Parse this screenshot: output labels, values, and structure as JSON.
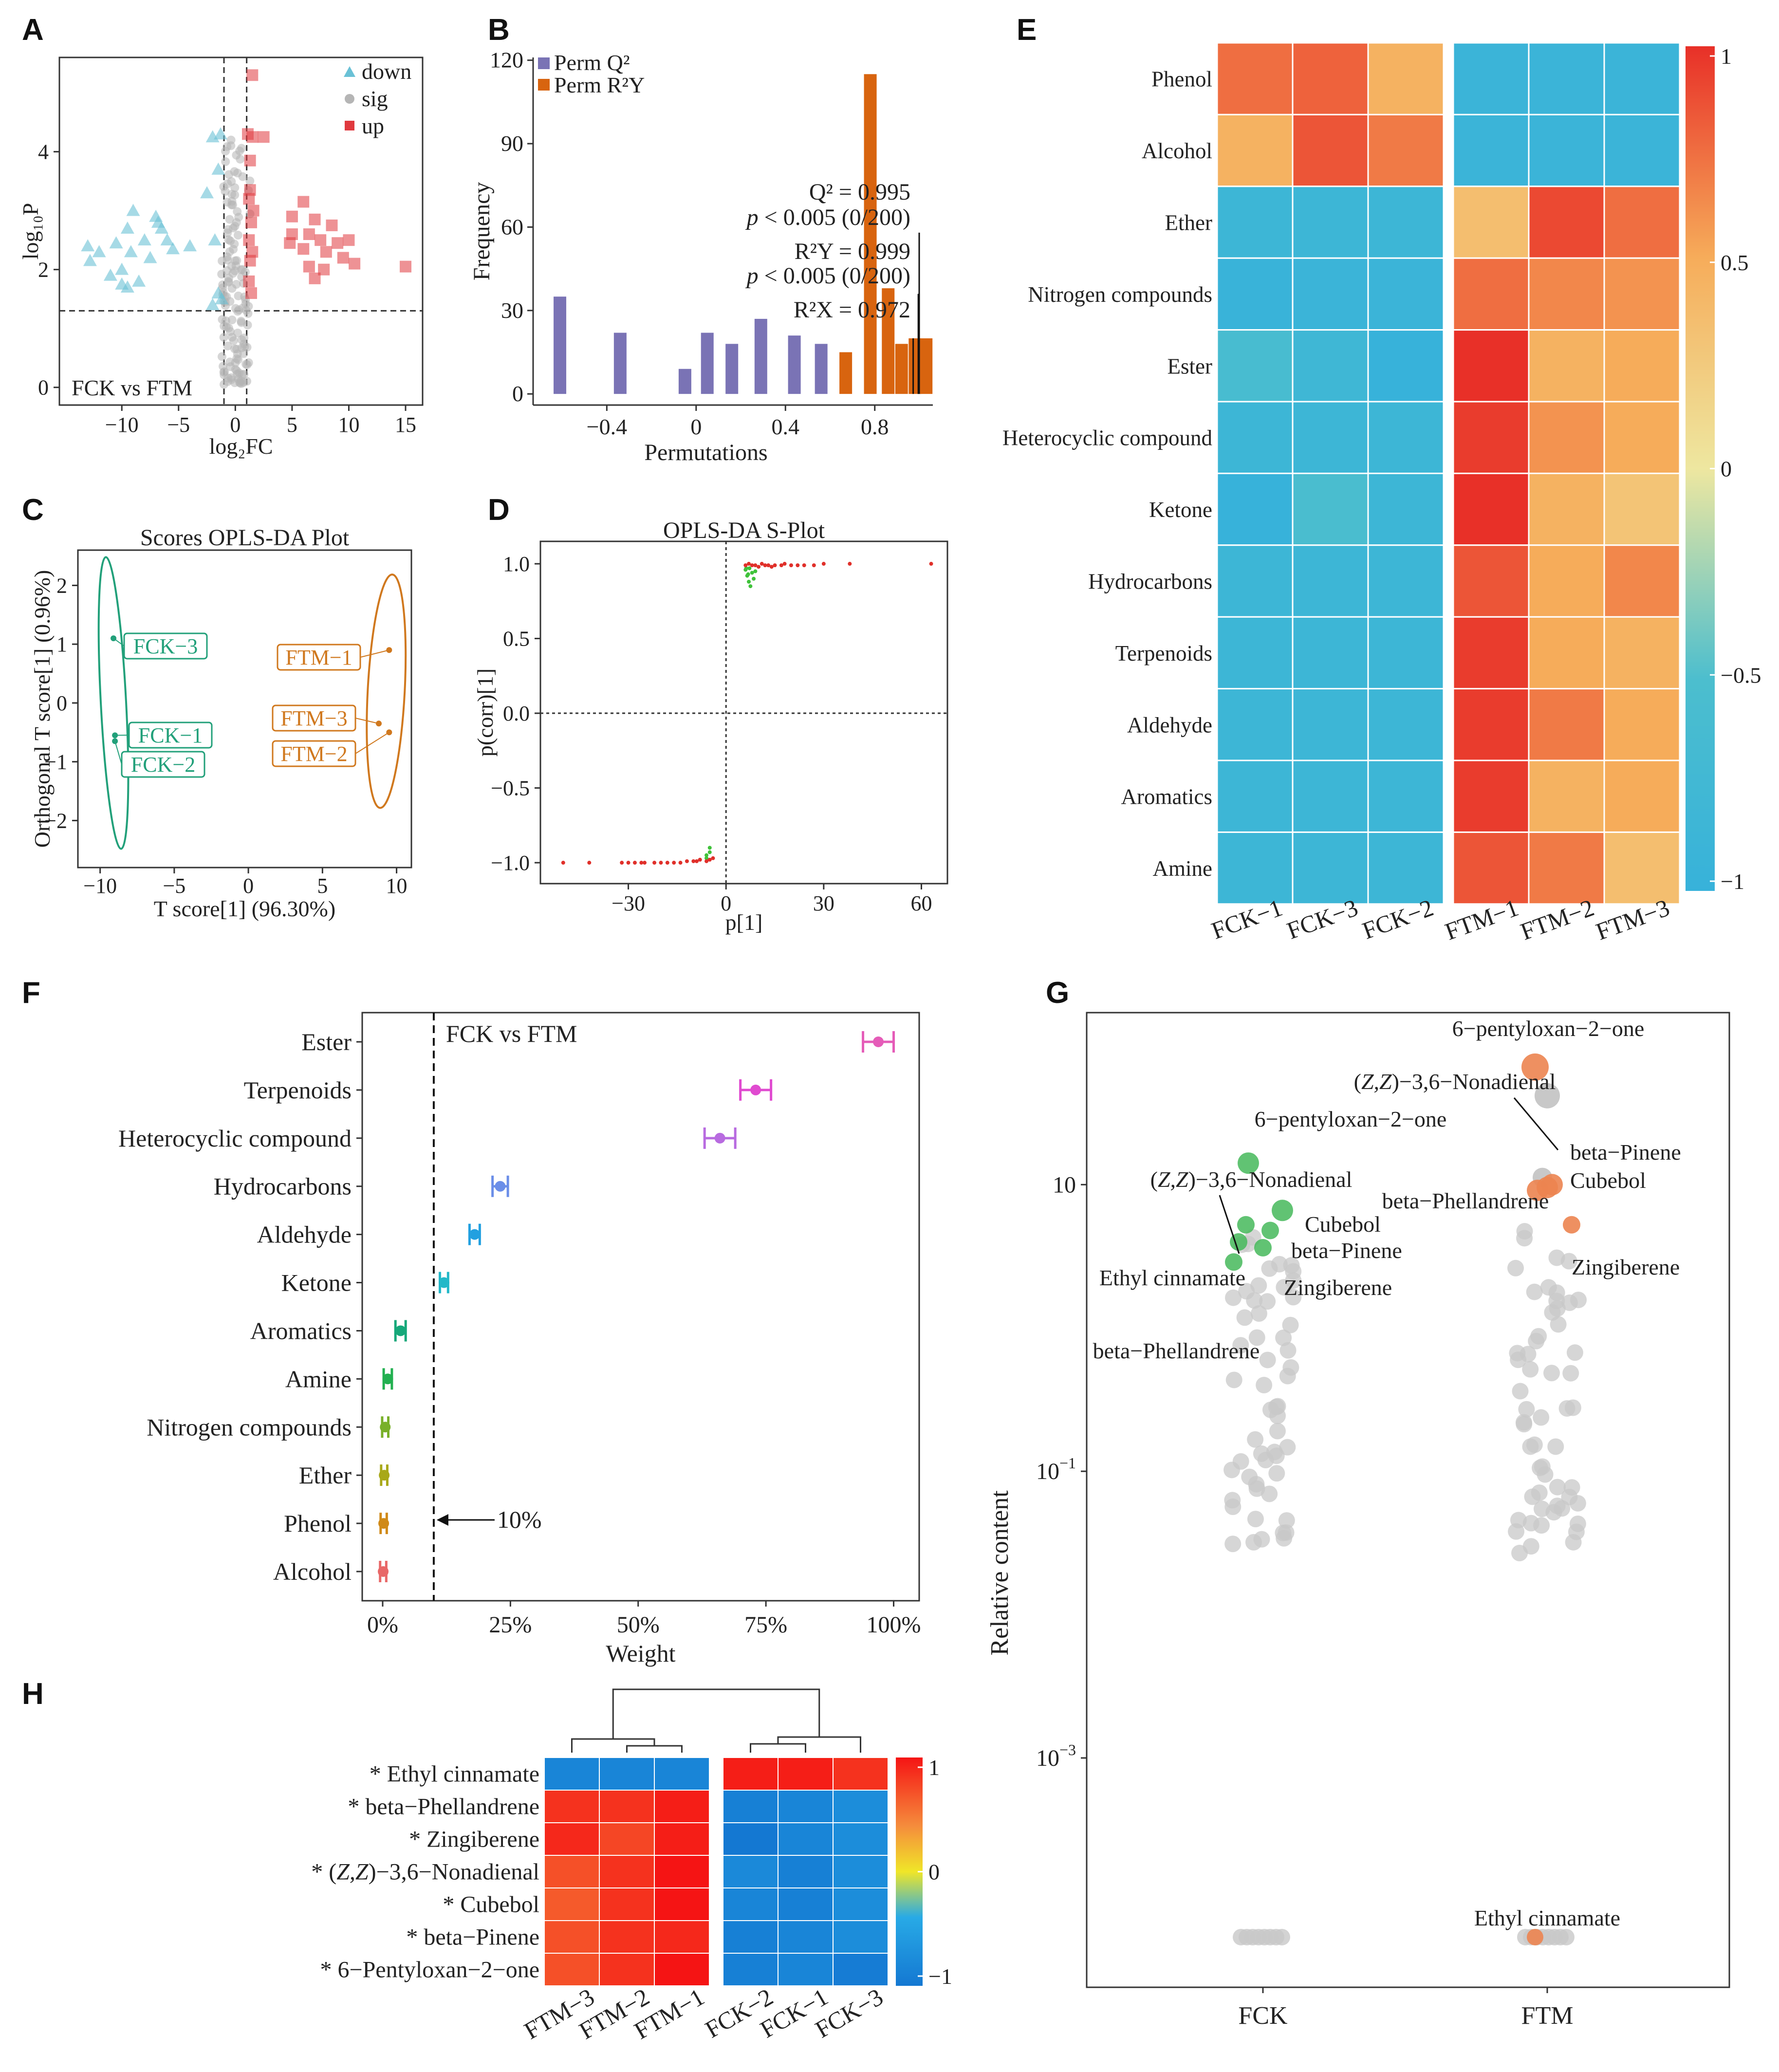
{
  "panels": {
    "a": "A",
    "b": "B",
    "c": "C",
    "d": "D",
    "e": "E",
    "f": "F",
    "g": "G",
    "h": "H"
  },
  "chart_data": [
    {
      "id": "A",
      "type": "scatter",
      "xlabel": "log₂FC",
      "ylabel": "log₁₀P",
      "xticks": [
        -10,
        -5,
        0,
        5,
        10,
        15
      ],
      "yticks": [
        0,
        2,
        4
      ],
      "xlim": [
        -15.5,
        16.5
      ],
      "ylim": [
        -0.3,
        5.6
      ],
      "annotation": "FCK vs FTM",
      "legend": [
        {
          "name": "down",
          "color": "#6ac1d6"
        },
        {
          "name": "sig",
          "color": "#b5b5b5"
        },
        {
          "name": "up",
          "color": "#e0393e"
        }
      ],
      "thresholds": {
        "fc": [
          -1,
          1
        ],
        "p": 1.3
      },
      "down": [
        [
          -13,
          2.4
        ],
        [
          -12,
          2.3
        ],
        [
          -10.5,
          2.45
        ],
        [
          -9.5,
          2.7
        ],
        [
          -9,
          3.0
        ],
        [
          -9.2,
          2.3
        ],
        [
          -8,
          2.5
        ],
        [
          -10,
          2.0
        ],
        [
          -11,
          1.9
        ],
        [
          -7,
          2.9
        ],
        [
          -6.5,
          2.7
        ],
        [
          -6,
          2.5
        ],
        [
          -5.5,
          2.35
        ],
        [
          -7.5,
          2.2
        ],
        [
          -8.5,
          1.8
        ],
        [
          -9.5,
          1.7
        ],
        [
          -4,
          2.4
        ],
        [
          -2,
          4.25
        ],
        [
          -1.3,
          4.3
        ],
        [
          -1.5,
          3.7
        ],
        [
          -2.5,
          3.3
        ],
        [
          -1.8,
          2.5
        ],
        [
          -1.2,
          1.5
        ],
        [
          -1.5,
          1.6
        ],
        [
          -2,
          1.4
        ],
        [
          -10,
          1.75
        ],
        [
          -6.8,
          2.8
        ],
        [
          -12.8,
          2.15
        ]
      ],
      "up": [
        [
          1.5,
          5.3
        ],
        [
          1.1,
          4.3
        ],
        [
          1.5,
          4.25
        ],
        [
          2.5,
          4.25
        ],
        [
          1.3,
          3.85
        ],
        [
          1.3,
          3.35
        ],
        [
          1.2,
          3.2
        ],
        [
          1.6,
          3.0
        ],
        [
          1.4,
          2.8
        ],
        [
          1.2,
          2.5
        ],
        [
          1.5,
          2.3
        ],
        [
          1.3,
          2.15
        ],
        [
          1.2,
          1.8
        ],
        [
          1.4,
          1.6
        ],
        [
          6.0,
          3.15
        ],
        [
          5.0,
          2.9
        ],
        [
          7.0,
          2.85
        ],
        [
          8.5,
          2.75
        ],
        [
          6.5,
          2.6
        ],
        [
          7.5,
          2.5
        ],
        [
          9.0,
          2.45
        ],
        [
          10.0,
          2.5
        ],
        [
          5.0,
          2.6
        ],
        [
          6.0,
          2.35
        ],
        [
          8.0,
          2.3
        ],
        [
          6.5,
          2.05
        ],
        [
          7.0,
          1.85
        ],
        [
          9.5,
          2.2
        ],
        [
          10.5,
          2.1
        ],
        [
          15.0,
          2.05
        ],
        [
          7.8,
          2.0
        ],
        [
          4.8,
          2.45
        ]
      ],
      "sig_count": 140
    },
    {
      "id": "B",
      "type": "bar",
      "xlabel": "Permutations",
      "ylabel": "Frequency",
      "xticks": [
        -0.4,
        0,
        0.4,
        0.8
      ],
      "yticks": [
        0,
        30,
        60,
        90,
        120
      ],
      "xlim": [
        -0.73,
        1.06
      ],
      "ylim": [
        -4,
        121
      ],
      "series": [
        {
          "name": "Perm Q²",
          "color": "#7a73b5",
          "x": [
            -0.61,
            -0.34,
            -0.05,
            0.05,
            0.16,
            0.29,
            0.44,
            0.56
          ],
          "values": [
            35,
            22,
            9,
            22,
            18,
            27,
            21,
            18
          ]
        },
        {
          "name": "Perm R²Y",
          "color": "#d8640f",
          "x": [
            0.67,
            0.78,
            0.86,
            0.92,
            0.98,
            1.03
          ],
          "values": [
            15,
            115,
            38,
            18,
            20,
            20
          ]
        }
      ],
      "stats": [
        {
          "label": "Q² = 0.995",
          "p": "p < 0.005 (0/200)",
          "x": 0.995
        },
        {
          "label": "R²Y = 0.999",
          "p": "p < 0.005 (0/200)",
          "x": 0.999
        },
        {
          "label": "R²X = 0.972",
          "x": 0.972
        }
      ],
      "p_prefix": "p",
      "p_suffix": " < 0.005 (0/200)"
    },
    {
      "id": "C",
      "type": "scatter",
      "title": "Scores OPLS-DA Plot",
      "xlabel": "T score[1] (96.30%)",
      "ylabel": "Orthogonal T score[1] (0.96%)",
      "xticks": [
        -10,
        -5,
        0,
        5,
        10
      ],
      "yticks": [
        -2,
        -1,
        0,
        1,
        2
      ],
      "xlim": [
        -11.5,
        11
      ],
      "ylim": [
        -2.8,
        2.6
      ],
      "points": [
        {
          "label": "FCK−1",
          "x": -9.0,
          "y": -0.55,
          "group": "FCK"
        },
        {
          "label": "FCK−2",
          "x": -9.0,
          "y": -0.65,
          "group": "FCK"
        },
        {
          "label": "FCK−3",
          "x": -9.1,
          "y": 1.1,
          "group": "FCK"
        },
        {
          "label": "FTM−1",
          "x": 9.5,
          "y": 0.9,
          "group": "FTM"
        },
        {
          "label": "FTM−2",
          "x": 9.5,
          "y": -0.5,
          "group": "FTM"
        },
        {
          "label": "FTM−3",
          "x": 8.8,
          "y": -0.35,
          "group": "FTM"
        }
      ],
      "colors": {
        "FCK": "#22a07a",
        "FTM": "#d0781e"
      }
    },
    {
      "id": "D",
      "type": "scatter",
      "title": "OPLS-DA S-Plot",
      "xlabel": "p[1]",
      "ylabel": "p(corr)[1]",
      "xticks": [
        -30,
        0,
        30,
        60
      ],
      "yticks": [
        -1.0,
        -0.5,
        0.0,
        0.5,
        1.0
      ],
      "xlim": [
        -57,
        68
      ],
      "ylim": [
        -1.14,
        1.15
      ],
      "red": [
        [
          -50,
          -1.0
        ],
        [
          -42,
          -1.0
        ],
        [
          -32,
          -1.0
        ],
        [
          -30,
          -1.0
        ],
        [
          -28,
          -1.0
        ],
        [
          -26,
          -1.0
        ],
        [
          -25,
          -1.0
        ],
        [
          -22,
          -1.0
        ],
        [
          -20,
          -1.0
        ],
        [
          -18,
          -1.0
        ],
        [
          -16,
          -1.0
        ],
        [
          -14,
          -1.0
        ],
        [
          -12,
          -0.99
        ],
        [
          -10,
          -0.99
        ],
        [
          -9,
          -0.99
        ],
        [
          -8,
          -0.98
        ],
        [
          -6,
          -0.99
        ],
        [
          -5,
          -0.98
        ],
        [
          -4,
          -0.97
        ],
        [
          6,
          0.99
        ],
        [
          7,
          1.0
        ],
        [
          8,
          0.99
        ],
        [
          9,
          0.99
        ],
        [
          10,
          0.98
        ],
        [
          11,
          1.0
        ],
        [
          12,
          0.99
        ],
        [
          13,
          0.99
        ],
        [
          14,
          0.98
        ],
        [
          15,
          0.99
        ],
        [
          17,
          0.99
        ],
        [
          18,
          1.0
        ],
        [
          20,
          0.99
        ],
        [
          22,
          0.99
        ],
        [
          24,
          0.99
        ],
        [
          27,
          0.99
        ],
        [
          30,
          1.0
        ],
        [
          38,
          1.0
        ],
        [
          63,
          1.0
        ]
      ],
      "green": [
        [
          -6,
          -0.95
        ],
        [
          -5,
          -0.93
        ],
        [
          -5,
          -0.9
        ],
        [
          -6,
          -0.97
        ],
        [
          6,
          0.96
        ],
        [
          6.5,
          0.92
        ],
        [
          7,
          0.88
        ],
        [
          7.5,
          0.85
        ],
        [
          8,
          0.94
        ],
        [
          8.5,
          0.9
        ],
        [
          6.2,
          0.97
        ],
        [
          7.2,
          0.97
        ],
        [
          9,
          0.95
        ],
        [
          6.8,
          0.93
        ]
      ]
    },
    {
      "id": "E",
      "type": "heatmap",
      "rows": [
        "Phenol",
        "Alcohol",
        "Ether",
        "Nitrogen compounds",
        "Ester",
        "Heterocyclic compound",
        "Ketone",
        "Hydrocarbons",
        "Terpenoids",
        "Aldehyde",
        "Aromatics",
        "Amine"
      ],
      "columns": [
        "FCK−1",
        "FCK−3",
        "FCK−2",
        "FTM−1",
        "FTM−2",
        "FTM−3"
      ],
      "values": [
        [
          0.75,
          0.8,
          0.45,
          -0.9,
          -0.9,
          -0.9
        ],
        [
          0.45,
          0.85,
          0.7,
          -0.9,
          -0.9,
          -0.9
        ],
        [
          -0.85,
          -0.85,
          -0.85,
          0.35,
          0.9,
          0.75
        ],
        [
          -0.95,
          -0.9,
          -0.9,
          0.75,
          0.65,
          0.6
        ],
        [
          -0.6,
          -0.8,
          -1.0,
          1.0,
          0.45,
          0.5
        ],
        [
          -0.85,
          -0.85,
          -0.85,
          0.95,
          0.6,
          0.5
        ],
        [
          -1.0,
          -0.55,
          -0.85,
          1.0,
          0.45,
          0.3
        ],
        [
          -0.85,
          -0.85,
          -0.85,
          0.85,
          0.5,
          0.65
        ],
        [
          -0.85,
          -0.85,
          -0.85,
          0.95,
          0.5,
          0.45
        ],
        [
          -0.85,
          -0.85,
          -0.85,
          0.95,
          0.7,
          0.5
        ],
        [
          -0.85,
          -0.85,
          -0.85,
          0.95,
          0.45,
          0.5
        ],
        [
          -0.85,
          -0.85,
          -0.85,
          0.85,
          0.7,
          0.35
        ]
      ],
      "colorbar_ticks": [
        "1",
        "0.5",
        "0",
        "−0.5",
        "−1"
      ]
    },
    {
      "id": "F",
      "type": "scatter",
      "xlabel": "Weight",
      "annotation": "FCK vs FTM",
      "threshold_label": "10%",
      "xticks": [
        "0%",
        "25%",
        "50%",
        "75%",
        "100%"
      ],
      "xlim": [
        -0.04,
        1.05
      ],
      "threshold": 0.1,
      "items": [
        {
          "label": "Ester",
          "value": 0.97,
          "err": 0.03,
          "color": "#e55cb8"
        },
        {
          "label": "Terpenoids",
          "value": 0.73,
          "err": 0.03,
          "color": "#e04ad0"
        },
        {
          "label": "Heterocyclic compound",
          "value": 0.66,
          "err": 0.03,
          "color": "#b86be0"
        },
        {
          "label": "Hydrocarbons",
          "value": 0.23,
          "err": 0.015,
          "color": "#6b8ee8"
        },
        {
          "label": "Aldehyde",
          "value": 0.18,
          "err": 0.01,
          "color": "#22a0e0"
        },
        {
          "label": "Ketone",
          "value": 0.12,
          "err": 0.008,
          "color": "#22b8c8"
        },
        {
          "label": "Aromatics",
          "value": 0.035,
          "err": 0.01,
          "color": "#16a87a"
        },
        {
          "label": "Amine",
          "value": 0.01,
          "err": 0.008,
          "color": "#22b050"
        },
        {
          "label": "Nitrogen compounds",
          "value": 0.005,
          "err": 0.006,
          "color": "#78b028"
        },
        {
          "label": "Ether",
          "value": 0.003,
          "err": 0.006,
          "color": "#a8a818"
        },
        {
          "label": "Phenol",
          "value": 0.002,
          "err": 0.006,
          "color": "#d08a18"
        },
        {
          "label": "Alcohol",
          "value": 0.001,
          "err": 0.006,
          "color": "#e86868"
        }
      ]
    },
    {
      "id": "G",
      "type": "scatter",
      "ylabel": "Relative content",
      "categories": [
        "FCK",
        "FTM"
      ],
      "yticks": [
        {
          "label": "10",
          "exp": "",
          "value": 1
        },
        {
          "label": "10",
          "exp": "−1",
          "value": -1
        },
        {
          "label": "10",
          "exp": "−3",
          "value": -3
        }
      ],
      "ylim_log10": [
        -4.6,
        2.2
      ],
      "highlight": {
        "FCK": [
          {
            "label": "6−pentyloxan−2−one",
            "x": -0.06,
            "y": 1.15,
            "r": 22
          },
          {
            "label": "(Z,Z)−3,6−Nonadienal",
            "x": -0.1,
            "y": 0.6,
            "r": 18
          },
          {
            "label": "Cubebol",
            "x": 0.08,
            "y": 0.82,
            "r": 22
          },
          {
            "label": "beta−Pinene",
            "x": 0.03,
            "y": 0.68,
            "r": 18
          },
          {
            "label": "Ethyl cinnamate",
            "x": -0.07,
            "y": 0.72,
            "r": 18
          },
          {
            "label": "Zingiberene",
            "x": 0.0,
            "y": 0.56,
            "r": 18
          },
          {
            "label": "beta−Phellandrene",
            "x": -0.12,
            "y": 0.46,
            "r": 18
          }
        ],
        "FTM": [
          {
            "label": "6−pentyloxan−2−one",
            "x": -0.05,
            "y": 1.82,
            "r": 28
          },
          {
            "label": "beta−Pinene",
            "x": 0.02,
            "y": 1.0,
            "r": 22
          },
          {
            "label": "Cubebol",
            "x": 0.0,
            "y": 0.98,
            "r": 22
          },
          {
            "label": "beta−Phellandrene",
            "x": -0.04,
            "y": 0.96,
            "r": 22
          },
          {
            "label": "Zingiberene",
            "x": 0.1,
            "y": 0.72,
            "r": 18
          },
          {
            "label": "Ethyl cinnamate",
            "x": -0.05,
            "y": -4.25,
            "r": 17
          }
        ],
        "FTM_gray_label": "(Z,Z)−3,6−Nonadienal"
      },
      "colors": {
        "FCK": "#45b85a",
        "FTM": "#ec8450",
        "gray": "#c8c8c8"
      }
    },
    {
      "id": "H",
      "type": "heatmap",
      "rows": [
        "* Ethyl cinnamate",
        "* beta−Phellandrene",
        "* Zingiberene",
        "* (Z,Z)−3,6−Nonadienal",
        "* Cubebol",
        "* beta−Pinene",
        "* 6−Pentyloxan−2−one"
      ],
      "columns": [
        "FTM−3",
        "FTM−2",
        "FTM−1",
        "FCK−2",
        "FCK−1",
        "FCK−3"
      ],
      "values": [
        [
          -0.85,
          -0.85,
          -0.85,
          0.95,
          0.95,
          0.85
        ],
        [
          0.85,
          0.85,
          0.95,
          -0.9,
          -0.85,
          -0.75
        ],
        [
          0.9,
          0.75,
          0.95,
          -1.0,
          -0.85,
          -0.75
        ],
        [
          0.7,
          0.85,
          1.0,
          -0.8,
          -0.9,
          -0.75
        ],
        [
          0.65,
          0.85,
          1.0,
          -0.85,
          -0.9,
          -0.75
        ],
        [
          0.7,
          0.85,
          0.9,
          -0.9,
          -0.85,
          -0.75
        ],
        [
          0.7,
          0.85,
          1.0,
          -0.9,
          -0.85,
          -0.95
        ]
      ],
      "colorbar_ticks": [
        "1",
        "0",
        "−1"
      ]
    }
  ]
}
